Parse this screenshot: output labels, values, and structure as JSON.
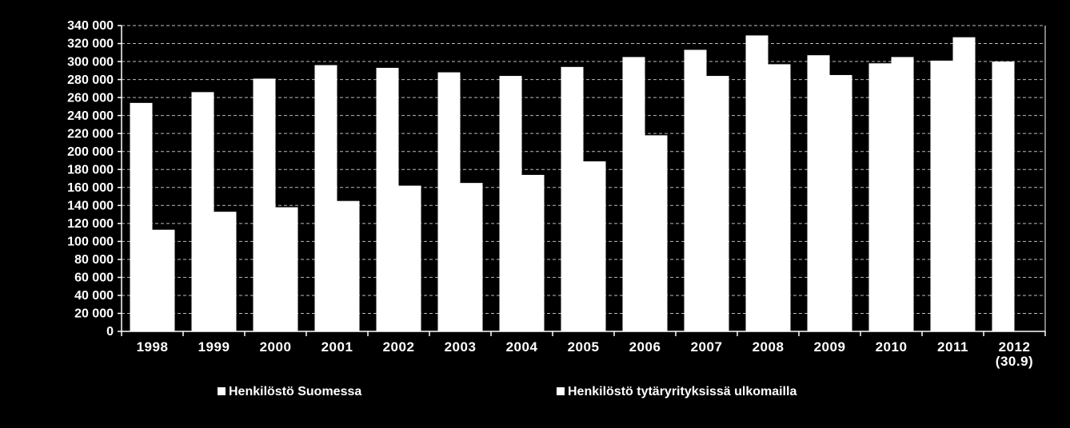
{
  "chart_data": {
    "type": "bar",
    "categories": [
      "1998",
      "1999",
      "2000",
      "2001",
      "2002",
      "2003",
      "2004",
      "2005",
      "2006",
      "2007",
      "2008",
      "2009",
      "2010",
      "2011",
      "2012\n(30.9)"
    ],
    "series": [
      {
        "name": "Henkilöstö Suomessa",
        "color": "#ffffff",
        "values": [
          254000,
          266000,
          281000,
          296000,
          293000,
          288000,
          284000,
          294000,
          305000,
          313000,
          329000,
          307000,
          298000,
          301000,
          300000
        ]
      },
      {
        "name": "Henkilöstö tytäryrityksissä ulkomailla",
        "color": "#ffffff",
        "values": [
          113000,
          133000,
          138000,
          145000,
          162000,
          165000,
          174000,
          189000,
          218000,
          284000,
          297000,
          285000,
          305000,
          327000,
          null
        ]
      }
    ],
    "ylim": [
      0,
      340000
    ],
    "yticks": [
      0,
      {
        "value": 20000,
        "label": "20 000"
      },
      {
        "value": 40000,
        "label": "40 000"
      },
      {
        "value": 60000,
        "label": "60 000"
      },
      {
        "value": 80000,
        "label": "80 000"
      },
      {
        "value": 100000,
        "label": "100 000"
      },
      {
        "value": 120000,
        "label": "120 000"
      },
      {
        "value": 140000,
        "label": "140 000"
      },
      {
        "value": 160000,
        "label": "160 000"
      },
      {
        "value": 180000,
        "label": "180 000"
      },
      {
        "value": 200000,
        "label": "200 000"
      },
      {
        "value": 220000,
        "label": "220 000"
      },
      {
        "value": 240000,
        "label": "240 000"
      },
      {
        "value": 260000,
        "label": "260 000"
      },
      {
        "value": 280000,
        "label": "280 000"
      },
      {
        "value": 300000,
        "label": "300 000"
      },
      {
        "value": 320000,
        "label": "320 000"
      },
      {
        "value": 340000,
        "label": "340 000"
      }
    ],
    "grid": true,
    "legend": "bottom"
  }
}
